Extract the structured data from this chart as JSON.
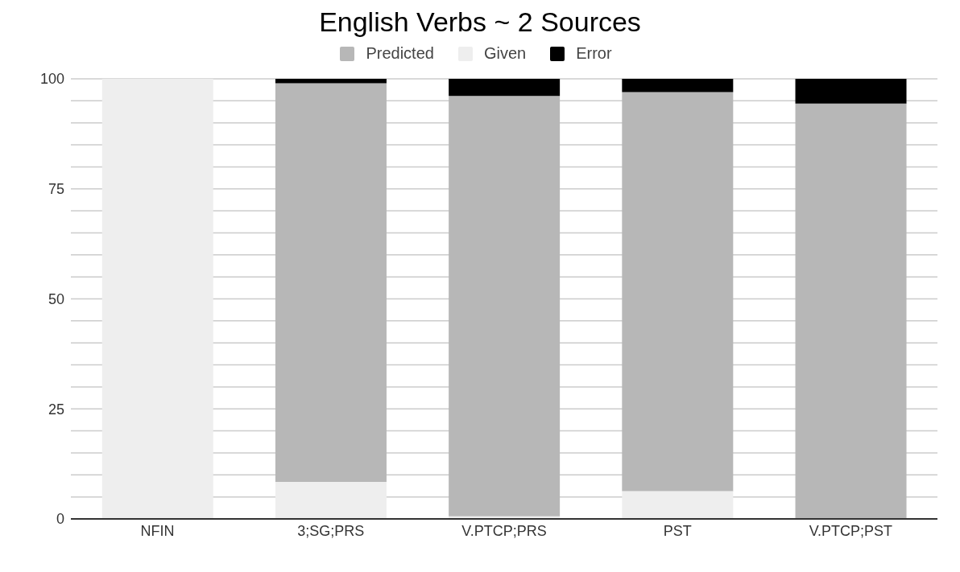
{
  "chart_data": {
    "type": "bar",
    "title": "English Verbs ~ 2 Sources",
    "stacked": true,
    "categories": [
      "NFIN",
      "3;SG;PRS",
      "V.PTCP;PRS",
      "PST",
      "V.PTCP;PST"
    ],
    "series": [
      {
        "name": "Given",
        "color": "#eeeeee",
        "values": [
          100,
          8.4,
          0.6,
          6.3,
          0
        ]
      },
      {
        "name": "Predicted",
        "color": "#b7b7b7",
        "values": [
          0,
          90.6,
          95.5,
          90.7,
          94.4
        ]
      },
      {
        "name": "Error",
        "color": "#000000",
        "values": [
          0,
          1,
          3.9,
          3,
          5.6
        ]
      }
    ],
    "ylim": [
      0,
      100
    ],
    "yticks": [
      0,
      {
        "value": 5,
        "label": null
      },
      {
        "value": 10,
        "label": null
      },
      {
        "value": 15,
        "label": null
      },
      {
        "value": 20,
        "label": null
      },
      25,
      {
        "value": 30,
        "label": null
      },
      {
        "value": 35,
        "label": null
      },
      {
        "value": 40,
        "label": null
      },
      {
        "value": 45,
        "label": null
      },
      50,
      {
        "value": 55,
        "label": null
      },
      {
        "value": 60,
        "label": null
      },
      {
        "value": 65,
        "label": null
      },
      {
        "value": 70,
        "label": null
      },
      75,
      {
        "value": 80,
        "label": null
      },
      {
        "value": 85,
        "label": null
      },
      {
        "value": 90,
        "label": null
      },
      {
        "value": 95,
        "label": null
      },
      100
    ],
    "grid": "y",
    "legend": "top"
  }
}
